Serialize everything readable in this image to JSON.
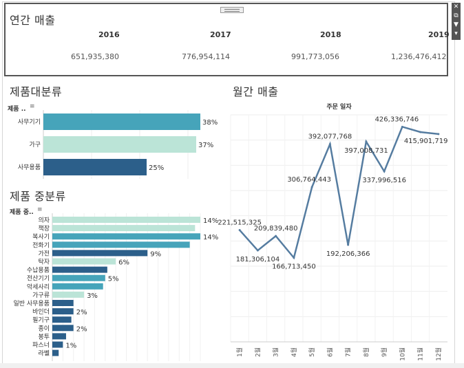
{
  "kpi": {
    "title": "연간 매출",
    "years": [
      "2016",
      "2017",
      "2018",
      "2019"
    ],
    "values": [
      "651,935,380",
      "776,954,114",
      "991,773,056",
      "1,236,476,412"
    ]
  },
  "colors": {
    "teal": "#46A4BA",
    "mint": "#BBE4D7",
    "navy": "#2C5F8A",
    "line": "#557CA0"
  },
  "icons": [
    "close-icon",
    "popout-icon",
    "filter-icon",
    "dropdown-icon"
  ],
  "chart_data": [
    {
      "type": "bar",
      "title": "제품대분류",
      "column_header": "제품 ..",
      "categories": [
        "사무기기",
        "가구",
        "사무용품"
      ],
      "values": [
        38,
        37,
        25
      ],
      "labels": [
        "38%",
        "37%",
        "25%"
      ],
      "colors": [
        "#46A4BA",
        "#BBE4D7",
        "#2C5F8A"
      ],
      "xlim": [
        0,
        40
      ]
    },
    {
      "type": "bar",
      "title": "제품 중분류",
      "column_header": "제품 중..",
      "categories": [
        "의자",
        "책장",
        "복사기",
        "전화기",
        "가전",
        "탁자",
        "수납용품",
        "전산기기",
        "악세사리",
        "가구류",
        "일반 사무용품",
        "바인더",
        "필기구",
        "종이",
        "봉투",
        "파스너",
        "라벨"
      ],
      "values": [
        14,
        13.5,
        14,
        13,
        9,
        6,
        5.2,
        5,
        4.8,
        3,
        2,
        2,
        1.8,
        2,
        1.3,
        1,
        0.6
      ],
      "labels": [
        "14%",
        "",
        "14%",
        "",
        "9%",
        "6%",
        "",
        "5%",
        "",
        "3%",
        "",
        "2%",
        "",
        "2%",
        "",
        "1%",
        ""
      ],
      "colors": [
        "#BBE4D7",
        "#BBE4D7",
        "#46A4BA",
        "#46A4BA",
        "#2C5F8A",
        "#BBE4D7",
        "#2C5F8A",
        "#46A4BA",
        "#46A4BA",
        "#BBE4D7",
        "#2C5F8A",
        "#2C5F8A",
        "#2C5F8A",
        "#2C5F8A",
        "#2C5F8A",
        "#2C5F8A",
        "#2C5F8A"
      ],
      "xlim": [
        0,
        15
      ]
    },
    {
      "type": "line",
      "title": "월간 매출",
      "subtitle": "주문 일자",
      "x": [
        "1월",
        "2월",
        "3월",
        "4월",
        "5월",
        "6월",
        "7월",
        "8월",
        "9월",
        "10월",
        "11월",
        "12월"
      ],
      "values": [
        221515325,
        181306104,
        209839480,
        166713450,
        306764443,
        392077768,
        192206366,
        397008731,
        337996516,
        426336746,
        415901719,
        412000000
      ],
      "labels": [
        "221,515,325",
        "181,306,104",
        "209,839,480",
        "166,713,450",
        "306,764,443",
        "392,077,768",
        "192,206,366",
        "397,008,731",
        "337,996,516",
        "426,336,746",
        "415,901,719",
        ""
      ],
      "ylim": [
        0,
        450000000
      ],
      "grid": true
    }
  ]
}
